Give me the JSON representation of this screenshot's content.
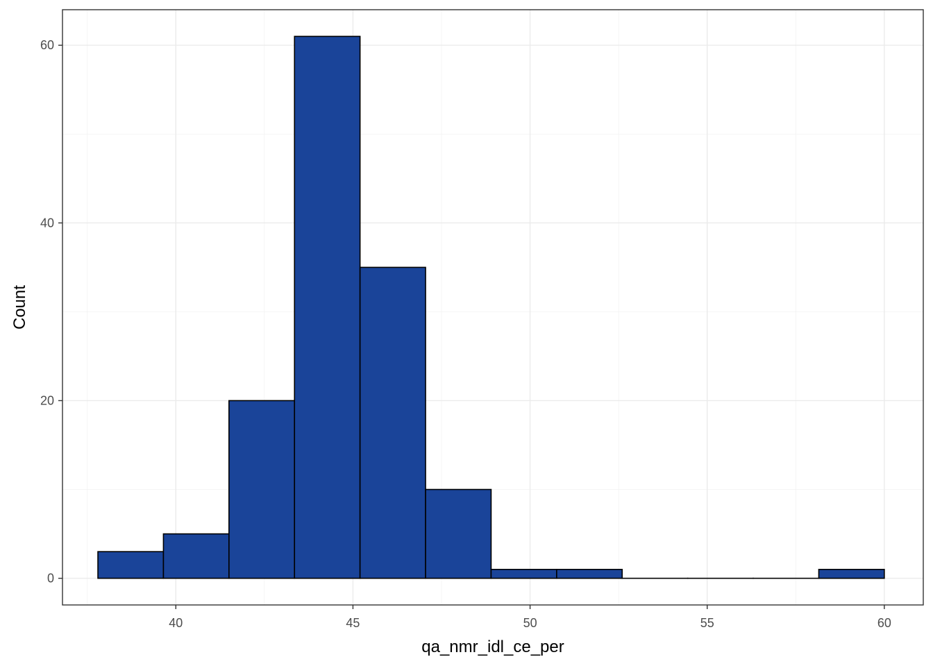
{
  "chart_data": {
    "type": "bar",
    "subtype": "histogram",
    "xlabel": "qa_nmr_idl_ce_per",
    "ylabel": "Count",
    "xlim": [
      36.8,
      61.1
    ],
    "ylim": [
      -3.0,
      64.0
    ],
    "x_ticks": [
      40,
      45,
      50,
      55,
      60
    ],
    "y_ticks": [
      0,
      20,
      40,
      60
    ],
    "bins": [
      {
        "x0": 37.8,
        "x1": 39.65,
        "count": 3
      },
      {
        "x0": 39.65,
        "x1": 41.5,
        "count": 5
      },
      {
        "x0": 41.5,
        "x1": 43.35,
        "count": 20
      },
      {
        "x0": 43.35,
        "x1": 45.2,
        "count": 61
      },
      {
        "x0": 45.2,
        "x1": 47.05,
        "count": 35
      },
      {
        "x0": 47.05,
        "x1": 48.9,
        "count": 10
      },
      {
        "x0": 48.9,
        "x1": 50.75,
        "count": 1
      },
      {
        "x0": 50.75,
        "x1": 52.6,
        "count": 1
      },
      {
        "x0": 52.6,
        "x1": 54.45,
        "count": 0
      },
      {
        "x0": 54.45,
        "x1": 56.3,
        "count": 0
      },
      {
        "x0": 56.3,
        "x1": 58.15,
        "count": 0
      },
      {
        "x0": 58.15,
        "x1": 60.0,
        "count": 1
      }
    ],
    "fill_color": "#1a4499",
    "grid": true,
    "legend": "none"
  }
}
